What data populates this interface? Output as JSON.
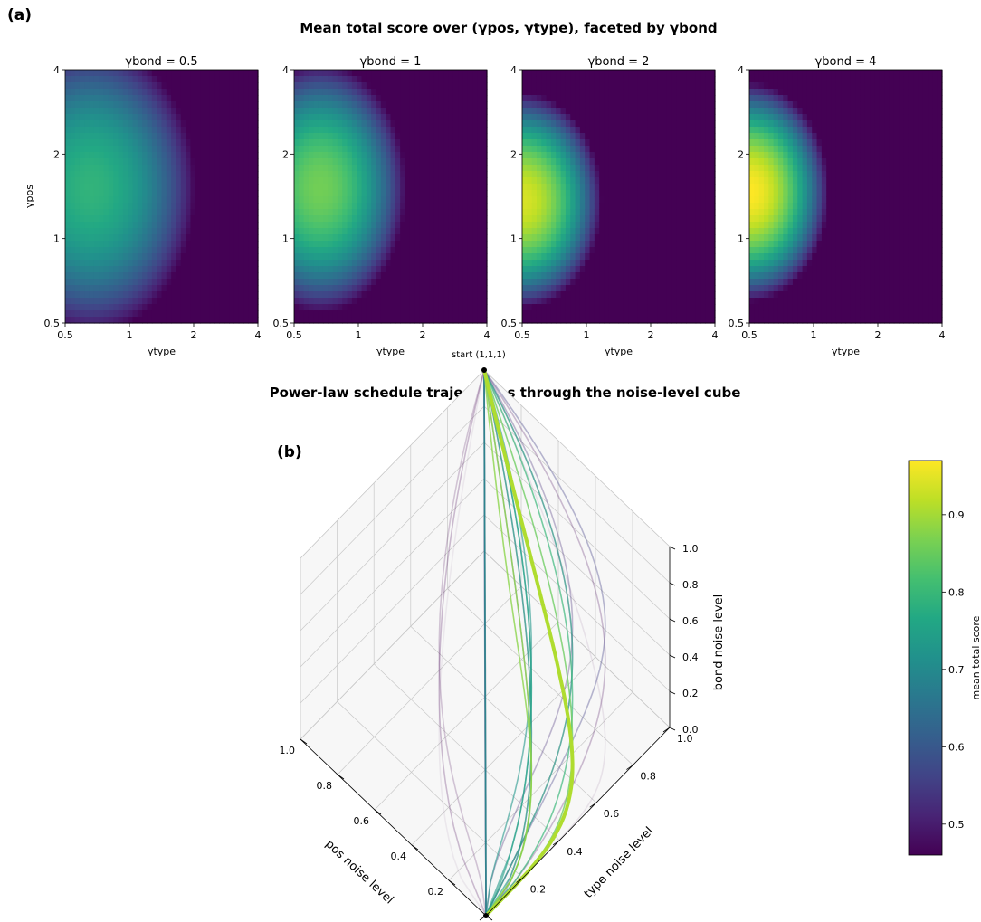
{
  "panel_a_label": "(a)",
  "panel_b_label": "(b)",
  "chart_data": [
    {
      "type": "heatmap",
      "title": "Mean total score over (γpos, γtype), faceted by γbond",
      "xlabel": "γtype",
      "ylabel": "γpos",
      "log_scale": true,
      "x_ticks": [
        "0.5",
        "1",
        "2",
        "4"
      ],
      "y_ticks": [
        "0.5",
        "1",
        "2",
        "4"
      ],
      "xlim": [
        0.5,
        4
      ],
      "ylim": [
        0.5,
        4
      ],
      "facet_var": "γbond",
      "facets": [
        {
          "gamma_bond": "0.5",
          "label": "γbond = 0.5"
        },
        {
          "gamma_bond": "1",
          "label": "γbond = 1"
        },
        {
          "gamma_bond": "2",
          "label": "γbond = 2"
        },
        {
          "gamma_bond": "4",
          "label": "γbond = 4"
        }
      ],
      "colorscale": "viridis",
      "value_range": [
        0.46,
        0.97
      ]
    },
    {
      "type": "line",
      "title": "Power-law schedule trajectories through the noise-level cube",
      "xlabel": "pos noise level",
      "ylabel": "type noise level",
      "zlabel": "bond noise level",
      "axis_ticks": [
        "0.0",
        "0.2",
        "0.4",
        "0.6",
        "0.8",
        "1.0"
      ],
      "xlim": [
        0,
        1
      ],
      "ylim": [
        0,
        1
      ],
      "zlim": [
        0,
        1
      ],
      "start_point": [
        1,
        1,
        1
      ],
      "start_label": "start (1,1,1)",
      "end_point": [
        0,
        0,
        0
      ],
      "gamma_values": [
        0.5,
        1,
        2,
        4
      ],
      "colorbar": {
        "label": "mean total score",
        "range": [
          0.46,
          0.97
        ],
        "ticks": [
          "0.5",
          "0.6",
          "0.7",
          "0.8",
          "0.9"
        ],
        "colorscale": "viridis"
      }
    }
  ]
}
